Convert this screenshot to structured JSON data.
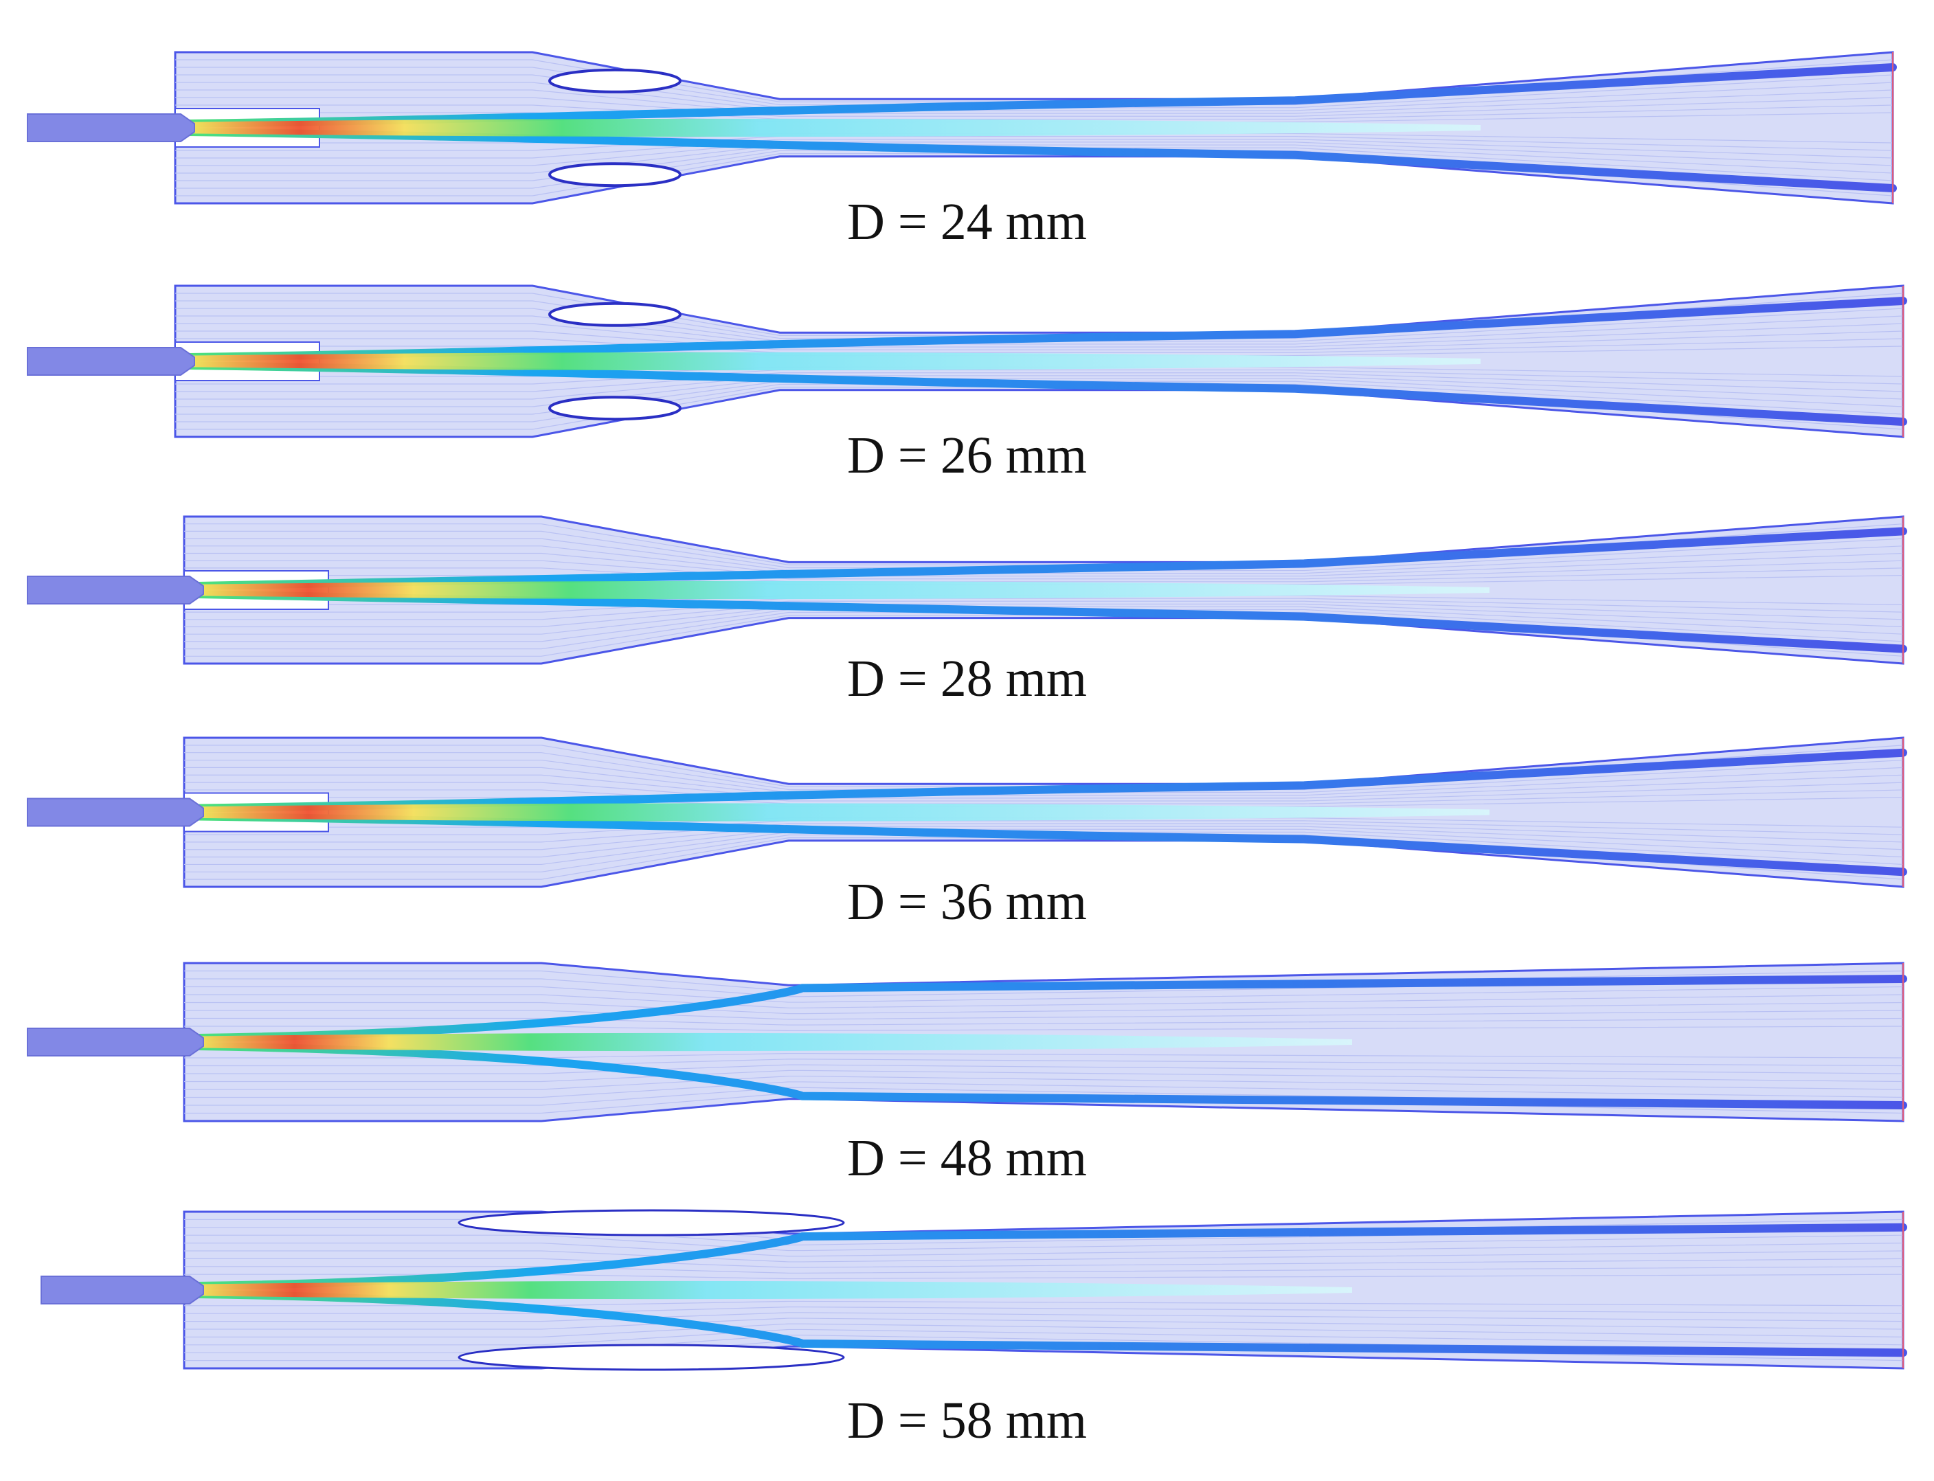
{
  "figure": {
    "panels": [
      {
        "caption": "D = 24 mm",
        "variant": "recirculation"
      },
      {
        "caption": "D = 26 mm",
        "variant": "recirculation"
      },
      {
        "caption": "D = 28 mm",
        "variant": "plain"
      },
      {
        "caption": "D = 36 mm",
        "variant": "plain"
      },
      {
        "caption": "D = 48 mm",
        "variant": "straight"
      },
      {
        "caption": "D = 58 mm",
        "variant": "bubble"
      }
    ]
  },
  "colors": {
    "background": "#ffffff",
    "wall": "#4b56e8",
    "field": "#d7dcf8",
    "shear_layer": "#1aa5f0",
    "core_cyan": "#7fe6f4",
    "core_green": "#4fe07a",
    "core_yellow": "#f6e05a",
    "core_red": "#f05030",
    "nozzle": "#8288e6"
  }
}
